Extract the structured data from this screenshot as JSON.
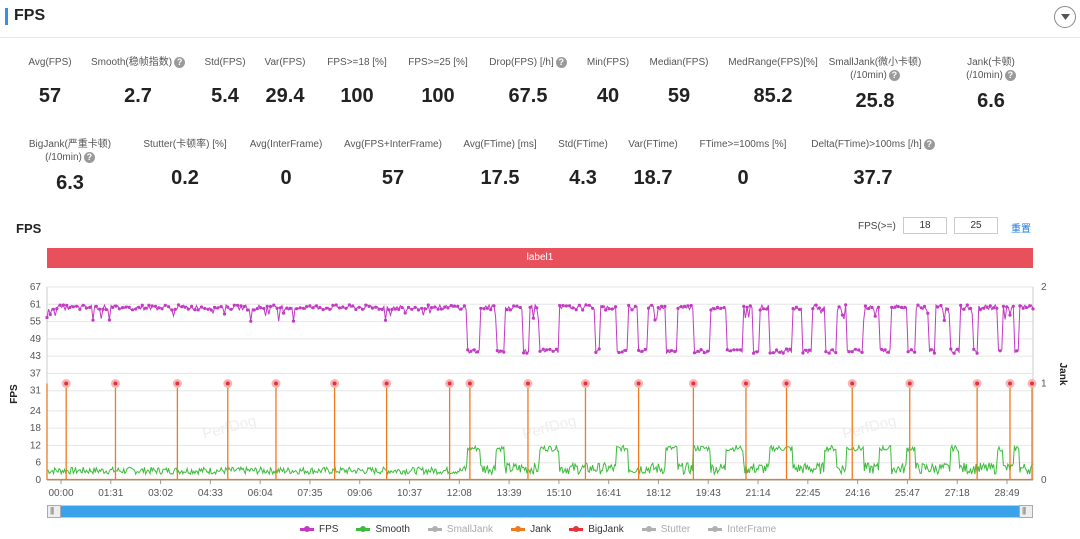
{
  "header": {
    "title": "FPS"
  },
  "stats_row1": [
    {
      "label": "Avg(FPS)",
      "value": "57",
      "help": false
    },
    {
      "label": "Smooth(稳帧指数)",
      "value": "2.7",
      "help": true
    },
    {
      "label": "Std(FPS)",
      "value": "5.4",
      "help": false
    },
    {
      "label": "Var(FPS)",
      "value": "29.4",
      "help": false
    },
    {
      "label": "FPS>=18 [%]",
      "value": "100",
      "help": false
    },
    {
      "label": "FPS>=25 [%]",
      "value": "100",
      "help": false
    },
    {
      "label": "Drop(FPS) [/h]",
      "value": "67.5",
      "help": true
    },
    {
      "label": "Min(FPS)",
      "value": "40",
      "help": false
    },
    {
      "label": "Median(FPS)",
      "value": "59",
      "help": false
    },
    {
      "label": "MedRange(FPS)[%]",
      "value": "85.2",
      "help": false
    },
    {
      "label": "SmallJank(微小卡顿)",
      "label2": "(/10min)",
      "value": "25.8",
      "help": true
    },
    {
      "label": "Jank(卡顿)",
      "label2": "(/10min)",
      "value": "6.6",
      "help": true
    }
  ],
  "stats_row2": [
    {
      "label": "BigJank(严重卡顿)",
      "label2": "(/10min)",
      "value": "6.3",
      "help": true
    },
    {
      "label": "Stutter(卡顿率) [%]",
      "value": "0.2",
      "help": false
    },
    {
      "label": "Avg(InterFrame)",
      "value": "0",
      "help": false
    },
    {
      "label": "Avg(FPS+InterFrame)",
      "value": "57",
      "help": false
    },
    {
      "label": "Avg(FTime) [ms]",
      "value": "17.5",
      "help": false
    },
    {
      "label": "Std(FTime)",
      "value": "4.3",
      "help": false
    },
    {
      "label": "Var(FTime)",
      "value": "18.7",
      "help": false
    },
    {
      "label": "FTime>=100ms [%]",
      "value": "0",
      "help": false
    },
    {
      "label": "Delta(FTime)>100ms [/h]",
      "value": "37.7",
      "help": true
    }
  ],
  "watermark": "PerfDog",
  "chart_section": {
    "title": "FPS",
    "threshold_label": "FPS(>=)",
    "threshold_1": "18",
    "threshold_2": "25",
    "reset_label": "重置",
    "label_bar": "label1"
  },
  "colors": {
    "fps": "#c23ac4",
    "smooth": "#3dbb3d",
    "jank": "#f07a1e",
    "bigjank": "#e8303a",
    "inactive": "#b0b0b0",
    "label_bar": "#e8505b",
    "slider": "#3aa2e9"
  },
  "chart_data": {
    "type": "line",
    "xlabel": "",
    "ylabel": "FPS",
    "ylabel_right": "Jank",
    "ylim": [
      0,
      67
    ],
    "ylim_right": [
      0,
      2
    ],
    "y_ticks": [
      "0",
      "6",
      "12",
      "18",
      "24",
      "31",
      "37",
      "43",
      "49",
      "55",
      "61",
      "67"
    ],
    "y_ticks_right": [
      "0",
      "1",
      "2"
    ],
    "x_ticks": [
      "00:00",
      "01:31",
      "03:02",
      "04:33",
      "06:04",
      "07:35",
      "09:06",
      "10:37",
      "12:08",
      "13:39",
      "15:10",
      "16:41",
      "18:12",
      "19:43",
      "21:14",
      "22:45",
      "24:16",
      "25:47",
      "27:18",
      "28:49"
    ],
    "x_range_seconds": [
      0,
      1800
    ],
    "fps_baseline": 59,
    "fps_segments": [
      {
        "start": 0,
        "end": 760,
        "value": 60,
        "dip_value": 57
      },
      {
        "start": 760,
        "end": 1800,
        "value": 60,
        "low_value": 44
      }
    ],
    "fps_low_runs": [
      [
        768,
        790
      ],
      [
        820,
        835
      ],
      [
        870,
        880
      ],
      [
        900,
        935
      ],
      [
        1000,
        1010
      ],
      [
        1040,
        1060
      ],
      [
        1080,
        1095
      ],
      [
        1130,
        1150
      ],
      [
        1180,
        1210
      ],
      [
        1240,
        1270
      ],
      [
        1290,
        1300
      ],
      [
        1320,
        1360
      ],
      [
        1380,
        1395
      ],
      [
        1420,
        1440
      ],
      [
        1460,
        1490
      ],
      [
        1520,
        1540
      ],
      [
        1570,
        1585
      ],
      [
        1610,
        1620
      ],
      [
        1650,
        1665
      ],
      [
        1690,
        1700
      ],
      [
        1735,
        1745
      ],
      [
        1765,
        1775
      ]
    ],
    "smooth_base": 2,
    "smooth_high_runs": [
      [
        768,
        790
      ],
      [
        820,
        835
      ],
      [
        900,
        935
      ],
      [
        1040,
        1060
      ],
      [
        1130,
        1150
      ],
      [
        1180,
        1210
      ],
      [
        1240,
        1270
      ],
      [
        1320,
        1360
      ],
      [
        1420,
        1440
      ],
      [
        1460,
        1490
      ],
      [
        1520,
        1540
      ],
      [
        1570,
        1585
      ],
      [
        1650,
        1665
      ],
      [
        1735,
        1745
      ],
      [
        1765,
        1775
      ]
    ],
    "smooth_high_value": 11,
    "jank_points": [
      {
        "t": 0,
        "bigjank": false
      },
      {
        "t": 35,
        "bigjank": true
      },
      {
        "t": 125,
        "bigjank": true
      },
      {
        "t": 238,
        "bigjank": true
      },
      {
        "t": 330,
        "bigjank": true
      },
      {
        "t": 418,
        "bigjank": true
      },
      {
        "t": 525,
        "bigjank": true
      },
      {
        "t": 620,
        "bigjank": true
      },
      {
        "t": 735,
        "bigjank": true
      },
      {
        "t": 772,
        "bigjank": true
      },
      {
        "t": 878,
        "bigjank": true
      },
      {
        "t": 983,
        "bigjank": true
      },
      {
        "t": 1080,
        "bigjank": true
      },
      {
        "t": 1180,
        "bigjank": true
      },
      {
        "t": 1276,
        "bigjank": true
      },
      {
        "t": 1350,
        "bigjank": true
      },
      {
        "t": 1470,
        "bigjank": true
      },
      {
        "t": 1575,
        "bigjank": true
      },
      {
        "t": 1698,
        "bigjank": true
      },
      {
        "t": 1758,
        "bigjank": true
      },
      {
        "t": 1805,
        "bigjank": true
      }
    ],
    "jank_value": 1,
    "legend": [
      {
        "name": "FPS",
        "color": "#c23ac4",
        "active": true
      },
      {
        "name": "Smooth",
        "color": "#3dbb3d",
        "active": true
      },
      {
        "name": "SmallJank",
        "color": "#b0b0b0",
        "active": false
      },
      {
        "name": "Jank",
        "color": "#f07a1e",
        "active": true
      },
      {
        "name": "BigJank",
        "color": "#e8303a",
        "active": true
      },
      {
        "name": "Stutter",
        "color": "#b0b0b0",
        "active": false
      },
      {
        "name": "InterFrame",
        "color": "#b0b0b0",
        "active": false
      }
    ]
  }
}
